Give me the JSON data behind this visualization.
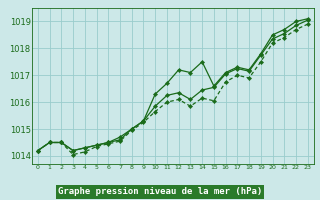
{
  "xlabel": "Graphe pression niveau de la mer (hPa)",
  "bg_color": "#cce8e8",
  "grid_color": "#99cccc",
  "line_color": "#1a6b1a",
  "label_bg": "#2a7a2a",
  "label_fg": "#ffffff",
  "xlim": [
    -0.5,
    23.5
  ],
  "ylim": [
    1013.7,
    1019.5
  ],
  "yticks": [
    1014,
    1015,
    1016,
    1017,
    1018,
    1019
  ],
  "xticks": [
    0,
    1,
    2,
    3,
    4,
    5,
    6,
    7,
    8,
    9,
    10,
    11,
    12,
    13,
    14,
    15,
    16,
    17,
    18,
    19,
    20,
    21,
    22,
    23
  ],
  "line1": [
    1014.2,
    1014.5,
    1014.5,
    1014.2,
    1014.3,
    1014.4,
    1014.5,
    1014.6,
    1015.0,
    1015.3,
    1016.3,
    1016.7,
    1017.2,
    1017.1,
    1017.5,
    1016.6,
    1017.1,
    1017.3,
    1017.2,
    1017.8,
    1018.5,
    1018.7,
    1019.0,
    1019.1
  ],
  "line2": [
    1014.2,
    1014.5,
    1014.5,
    1014.2,
    1014.3,
    1014.4,
    1014.5,
    1014.7,
    1015.0,
    1015.3,
    1015.85,
    1016.25,
    1016.35,
    1016.1,
    1016.45,
    1016.55,
    1017.05,
    1017.25,
    1017.15,
    1017.75,
    1018.35,
    1018.55,
    1018.85,
    1019.05
  ],
  "line3": [
    1014.2,
    1014.5,
    1014.5,
    1014.05,
    1014.15,
    1014.35,
    1014.45,
    1014.55,
    1014.95,
    1015.25,
    1015.65,
    1016.0,
    1016.1,
    1015.85,
    1016.15,
    1016.05,
    1016.75,
    1017.0,
    1016.9,
    1017.5,
    1018.2,
    1018.4,
    1018.7,
    1018.9
  ],
  "ytick_fontsize": 6,
  "xtick_fontsize": 4.5,
  "xlabel_fontsize": 6.5
}
